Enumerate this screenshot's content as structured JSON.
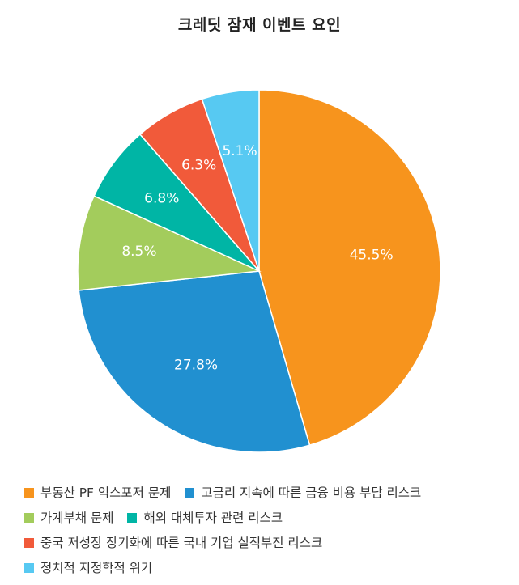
{
  "chart_data": {
    "type": "pie",
    "title": "크레딧 잠재 이벤트 요인",
    "legend_position": "bottom",
    "slices": [
      {
        "name": "부동산 PF 익스포저 문제",
        "value": 45.5,
        "label": "45.5%",
        "color": "#F7941D"
      },
      {
        "name": "고금리 지속에 따른 금융 비용 부담 리스크",
        "value": 27.8,
        "label": "27.8%",
        "color": "#2190D0"
      },
      {
        "name": "가계부채 문제",
        "value": 8.5,
        "label": "8.5%",
        "color": "#A3CC5C"
      },
      {
        "name": "해외 대체투자 관련 리스크",
        "value": 6.8,
        "label": "6.8%",
        "color": "#00B5A5"
      },
      {
        "name": "중국 저성장 장기화에 따른 국내 기업 실적부진 리스크",
        "value": 6.3,
        "label": "6.3%",
        "color": "#F15A3A"
      },
      {
        "name": "정치적 지정학적 위기",
        "value": 5.1,
        "label": "5.1%",
        "color": "#57C9F2"
      }
    ]
  }
}
